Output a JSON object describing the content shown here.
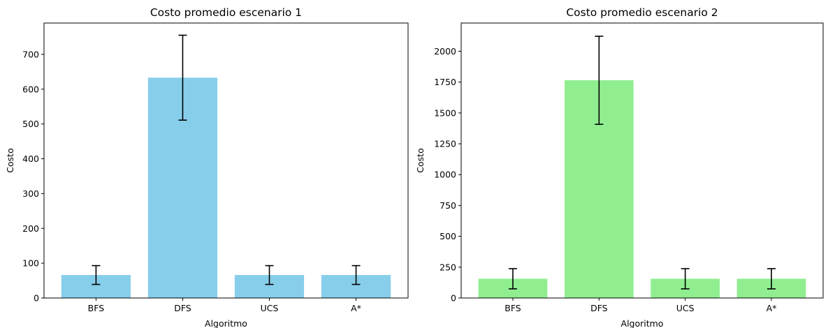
{
  "chart_data": [
    {
      "type": "bar",
      "title": "Costo promedio escenario 1",
      "xlabel": "Algoritmo",
      "ylabel": "Costo",
      "categories": [
        "BFS",
        "DFS",
        "UCS",
        "A*"
      ],
      "values": [
        66,
        633,
        66,
        66
      ],
      "errors": [
        27,
        122,
        27,
        27
      ],
      "ylim": [
        0,
        790
      ],
      "yticks": [
        0,
        100,
        200,
        300,
        400,
        500,
        600,
        700
      ],
      "color": "#87ceeb",
      "grid": false,
      "legend": "none"
    },
    {
      "type": "bar",
      "title": "Costo promedio escenario 2",
      "xlabel": "Algoritmo",
      "ylabel": "Costo",
      "categories": [
        "BFS",
        "DFS",
        "UCS",
        "A*"
      ],
      "values": [
        156,
        1765,
        156,
        156
      ],
      "errors": [
        82,
        357,
        82,
        82
      ],
      "ylim": [
        0,
        2229
      ],
      "yticks": [
        0,
        250,
        500,
        750,
        1000,
        1250,
        1500,
        1750,
        2000
      ],
      "color": "#90ee90",
      "grid": false,
      "legend": "none"
    }
  ]
}
